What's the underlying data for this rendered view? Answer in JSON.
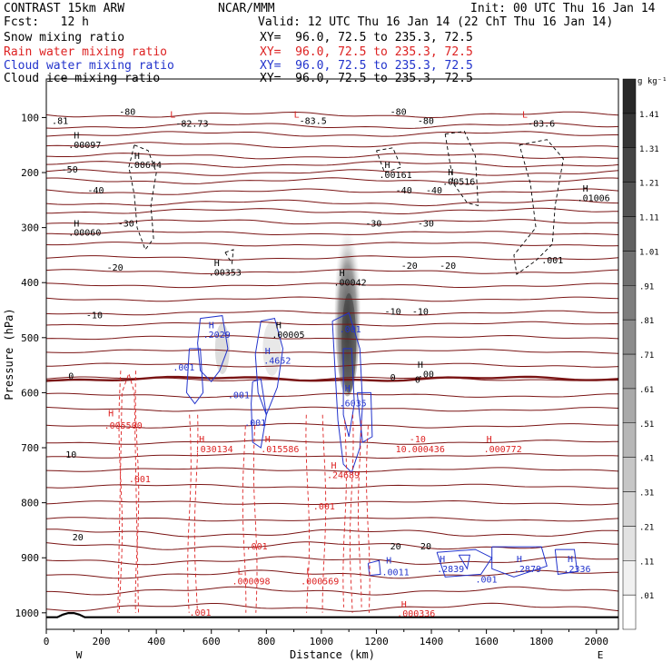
{
  "header": {
    "model": "CONTRAST 15km ARW",
    "center": "NCAR/MMM",
    "init": "Init: 00 UTC Thu 16 Jan 14",
    "fcst": "Fcst:   12 h",
    "valid": "Valid: 12 UTC Thu 16 Jan 14 (22 ChT Thu 16 Jan 14)",
    "fields": [
      {
        "name": "Snow mixing ratio",
        "xy": "XY=  96.0, 72.5 to 235.3, 72.5",
        "color": "#000000"
      },
      {
        "name": "Rain water mixing ratio",
        "xy": "XY=  96.0, 72.5 to 235.3, 72.5",
        "color": "#dd2222"
      },
      {
        "name": "Cloud water mixing ratio",
        "xy": "XY=  96.0, 72.5 to 235.3, 72.5",
        "color": "#2233cc"
      },
      {
        "name": "Cloud ice mixing ratio",
        "xy": "XY=  96.0, 72.5 to 235.3, 72.5",
        "color": "#000000"
      }
    ]
  },
  "chart_data": {
    "type": "contour cross-section",
    "xlabel": "Distance (km)",
    "ylabel": "Pressure (hPa)",
    "x_ticks": [
      0,
      200,
      400,
      600,
      800,
      1000,
      1200,
      1400,
      1600,
      1800,
      2000
    ],
    "xlim": [
      0,
      2080
    ],
    "y_ticks": [
      100,
      200,
      300,
      400,
      500,
      600,
      700,
      800,
      900,
      1000
    ],
    "ylim": [
      1030,
      30
    ],
    "x_end_labels": {
      "left": "W",
      "right": "E"
    },
    "colorbar": {
      "unit": "g kg⁻¹",
      "levels": [
        ".01",
        ".11",
        ".21",
        ".31",
        ".41",
        ".51",
        ".61",
        ".71",
        ".81",
        ".91",
        "1.01",
        "1.11",
        "1.21",
        "1.31",
        "1.41"
      ]
    },
    "temperature_isotherms": [
      {
        "label": "-80",
        "p": 105
      },
      {
        "label": "-50",
        "p": 185
      },
      {
        "label": "-40",
        "p": 235
      },
      {
        "label": "-30",
        "p": 290
      },
      {
        "label": "-20",
        "p": 380
      },
      {
        "label": "-10",
        "p": 475
      },
      {
        "label": "0",
        "p": 575
      },
      {
        "label": "10",
        "p": 710
      },
      {
        "label": "20",
        "p": 878
      }
    ],
    "annotations": [
      {
        "text": ".81",
        "x": 20,
        "p": 112,
        "color": "#000000"
      },
      {
        "text": "-80",
        "x": 265,
        "p": 95,
        "color": "#000000"
      },
      {
        "text": "-80",
        "x": 1250,
        "p": 95,
        "color": "#000000"
      },
      {
        "text": "-80",
        "x": 1350,
        "p": 112,
        "color": "#000000"
      },
      {
        "text": "L",
        "x": 450,
        "p": 100,
        "color": "#dd2222"
      },
      {
        "text": "-82.73",
        "x": 470,
        "p": 117,
        "color": "#000000"
      },
      {
        "text": "L",
        "x": 900,
        "p": 100,
        "color": "#dd2222"
      },
      {
        "text": "-83.5",
        "x": 920,
        "p": 112,
        "color": "#000000"
      },
      {
        "text": "L",
        "x": 1730,
        "p": 100,
        "color": "#dd2222"
      },
      {
        "text": "-83.6",
        "x": 1750,
        "p": 117,
        "color": "#000000"
      },
      {
        "text": "H",
        "x": 100,
        "p": 138,
        "color": "#000000"
      },
      {
        "text": ".00097",
        "x": 80,
        "p": 155,
        "color": "#000000"
      },
      {
        "text": "H",
        "x": 320,
        "p": 175,
        "color": "#000000"
      },
      {
        "text": ".00644",
        "x": 300,
        "p": 192,
        "color": "#000000"
      },
      {
        "text": "H",
        "x": 1230,
        "p": 192,
        "color": "#000000"
      },
      {
        "text": ".00161",
        "x": 1210,
        "p": 210,
        "color": "#000000"
      },
      {
        "text": "H",
        "x": 1460,
        "p": 205,
        "color": "#000000"
      },
      {
        "text": ".00516",
        "x": 1440,
        "p": 222,
        "color": "#000000"
      },
      {
        "text": "H",
        "x": 1950,
        "p": 235,
        "color": "#000000"
      },
      {
        "text": ".01006",
        "x": 1930,
        "p": 252,
        "color": "#000000"
      },
      {
        "text": "-50",
        "x": 55,
        "p": 200,
        "color": "#000000"
      },
      {
        "text": "-40",
        "x": 150,
        "p": 238,
        "color": "#000000"
      },
      {
        "text": "-40",
        "x": 1270,
        "p": 238,
        "color": "#000000"
      },
      {
        "text": "-40",
        "x": 1380,
        "p": 238,
        "color": "#000000"
      },
      {
        "text": "H",
        "x": 100,
        "p": 298,
        "color": "#000000"
      },
      {
        "text": ".00060",
        "x": 80,
        "p": 315,
        "color": "#000000"
      },
      {
        "text": "-30",
        "x": 260,
        "p": 298,
        "color": "#000000"
      },
      {
        "text": "-30",
        "x": 1160,
        "p": 298,
        "color": "#000000"
      },
      {
        "text": "-30",
        "x": 1350,
        "p": 298,
        "color": "#000000"
      },
      {
        "text": ".001",
        "x": 1800,
        "p": 365,
        "color": "#000000"
      },
      {
        "text": "-20",
        "x": 220,
        "p": 378,
        "color": "#000000"
      },
      {
        "text": "-20",
        "x": 1290,
        "p": 375,
        "color": "#000000"
      },
      {
        "text": "-20",
        "x": 1430,
        "p": 375,
        "color": "#000000"
      },
      {
        "text": "H",
        "x": 610,
        "p": 370,
        "color": "#000000"
      },
      {
        "text": ".00353",
        "x": 590,
        "p": 387,
        "color": "#000000"
      },
      {
        "text": "H",
        "x": 1065,
        "p": 388,
        "color": "#000000"
      },
      {
        "text": ".00042",
        "x": 1045,
        "p": 405,
        "color": "#000000"
      },
      {
        "text": "-10",
        "x": 145,
        "p": 465,
        "color": "#000000"
      },
      {
        "text": "-10",
        "x": 1230,
        "p": 458,
        "color": "#000000"
      },
      {
        "text": "-10",
        "x": 1330,
        "p": 458,
        "color": "#000000"
      },
      {
        "text": "H",
        "x": 590,
        "p": 483,
        "color": "#2233cc"
      },
      {
        "text": ".2029",
        "x": 570,
        "p": 500,
        "color": "#2233cc"
      },
      {
        "text": "H",
        "x": 835,
        "p": 483,
        "color": "#000000"
      },
      {
        "text": ".00005",
        "x": 820,
        "p": 500,
        "color": "#000000"
      },
      {
        "text": "H",
        "x": 795,
        "p": 530,
        "color": "#2233cc"
      },
      {
        "text": ".4652",
        "x": 790,
        "p": 547,
        "color": "#2233cc"
      },
      {
        "text": ".001",
        "x": 1065,
        "p": 490,
        "color": "#2233cc"
      },
      {
        "text": "H",
        "x": 1350,
        "p": 555,
        "color": "#000000"
      },
      {
        "text": ".00",
        "x": 1350,
        "p": 572,
        "color": "#000000"
      },
      {
        "text": ".001",
        "x": 460,
        "p": 560,
        "color": "#2233cc"
      },
      {
        "text": "0",
        "x": 80,
        "p": 575,
        "color": "#000000"
      },
      {
        "text": "0",
        "x": 1250,
        "p": 578,
        "color": "#000000"
      },
      {
        "text": "0",
        "x": 1340,
        "p": 582,
        "color": "#000000"
      },
      {
        "text": ".001",
        "x": 660,
        "p": 610,
        "color": "#2233cc"
      },
      {
        "text": "H",
        "x": 1085,
        "p": 598,
        "color": "#2233cc"
      },
      {
        "text": ".6035",
        "x": 1065,
        "p": 625,
        "color": "#2233cc"
      },
      {
        "text": ".001",
        "x": 720,
        "p": 660,
        "color": "#2233cc"
      },
      {
        "text": "H",
        "x": 225,
        "p": 643,
        "color": "#dd2222"
      },
      {
        "text": ".005500",
        "x": 210,
        "p": 665,
        "color": "#dd2222"
      },
      {
        "text": "H",
        "x": 555,
        "p": 690,
        "color": "#dd2222"
      },
      {
        "text": ".030134",
        "x": 540,
        "p": 708,
        "color": "#dd2222"
      },
      {
        "text": "H",
        "x": 795,
        "p": 690,
        "color": "#dd2222"
      },
      {
        "text": ".015586",
        "x": 780,
        "p": 708,
        "color": "#dd2222"
      },
      {
        "text": "H",
        "x": 1035,
        "p": 738,
        "color": "#dd2222"
      },
      {
        "text": ".24689",
        "x": 1020,
        "p": 755,
        "color": "#dd2222"
      },
      {
        "text": "-10",
        "x": 1320,
        "p": 690,
        "color": "#dd2222"
      },
      {
        "text": "10.000436",
        "x": 1270,
        "p": 708,
        "color": "#dd2222"
      },
      {
        "text": "H",
        "x": 1600,
        "p": 690,
        "color": "#dd2222"
      },
      {
        "text": ".000772",
        "x": 1590,
        "p": 708,
        "color": "#dd2222"
      },
      {
        "text": "10",
        "x": 70,
        "p": 718,
        "color": "#000000"
      },
      {
        "text": ".001",
        "x": 300,
        "p": 763,
        "color": "#dd2222"
      },
      {
        "text": ".001",
        "x": 970,
        "p": 812,
        "color": "#dd2222"
      },
      {
        "text": "20",
        "x": 95,
        "p": 868,
        "color": "#000000"
      },
      {
        "text": ".001",
        "x": 725,
        "p": 885,
        "color": "#dd2222"
      },
      {
        "text": "20",
        "x": 1250,
        "p": 885,
        "color": "#000000"
      },
      {
        "text": "20",
        "x": 1360,
        "p": 885,
        "color": "#000000"
      },
      {
        "text": "H",
        "x": 1235,
        "p": 910,
        "color": "#2233cc"
      },
      {
        "text": ".0011",
        "x": 1220,
        "p": 932,
        "color": "#2233cc"
      },
      {
        "text": "H",
        "x": 1430,
        "p": 908,
        "color": "#2233cc"
      },
      {
        "text": ".2839",
        "x": 1420,
        "p": 926,
        "color": "#2233cc"
      },
      {
        "text": ".001",
        "x": 1560,
        "p": 945,
        "color": "#2233cc"
      },
      {
        "text": "H",
        "x": 1710,
        "p": 908,
        "color": "#2233cc"
      },
      {
        "text": ".2879",
        "x": 1700,
        "p": 926,
        "color": "#2233cc"
      },
      {
        "text": "H",
        "x": 1895,
        "p": 908,
        "color": "#2233cc"
      },
      {
        "text": ".2336",
        "x": 1880,
        "p": 926,
        "color": "#2233cc"
      },
      {
        "text": "L",
        "x": 695,
        "p": 930,
        "color": "#dd2222"
      },
      {
        "text": ".000098",
        "x": 675,
        "p": 948,
        "color": "#dd2222"
      },
      {
        "text": "L",
        "x": 945,
        "p": 930,
        "color": "#dd2222"
      },
      {
        "text": ".000569",
        "x": 925,
        "p": 948,
        "color": "#dd2222"
      },
      {
        "text": ".001",
        "x": 520,
        "p": 1005,
        "color": "#dd2222"
      },
      {
        "text": "H",
        "x": 1290,
        "p": 990,
        "color": "#dd2222"
      },
      {
        "text": ".000336",
        "x": 1275,
        "p": 1007,
        "color": "#dd2222"
      }
    ]
  }
}
